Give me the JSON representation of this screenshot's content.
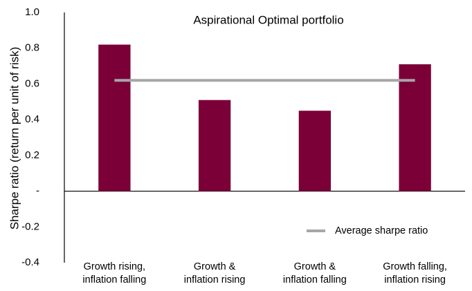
{
  "chart_data": {
    "type": "bar",
    "title": "Aspirational Optimal portfolio",
    "ylabel": "Sharpe ratio (return per unit of risk)",
    "categories": [
      "Growth rising,\ninflation falling",
      "Growth &\ninflation rising",
      "Growth &\ninflation falling",
      "Growth falling,\ninflation rising"
    ],
    "values": [
      0.82,
      0.51,
      0.45,
      0.71
    ],
    "color": "#7b0037",
    "series": [
      {
        "name": "Average sharpe ratio",
        "color": "#a6a6a6",
        "values": [
          0.62,
          0.62,
          0.62,
          0.62
        ]
      }
    ],
    "ylim": [
      -0.4,
      1.0
    ],
    "yticks": [
      {
        "value": 1.0,
        "label": "1.0"
      },
      0.8,
      0.6,
      0.4,
      0.2,
      {
        "value": 0,
        "label": "-"
      },
      -0.2,
      -0.4
    ],
    "grid": false,
    "legend": "lower right"
  }
}
